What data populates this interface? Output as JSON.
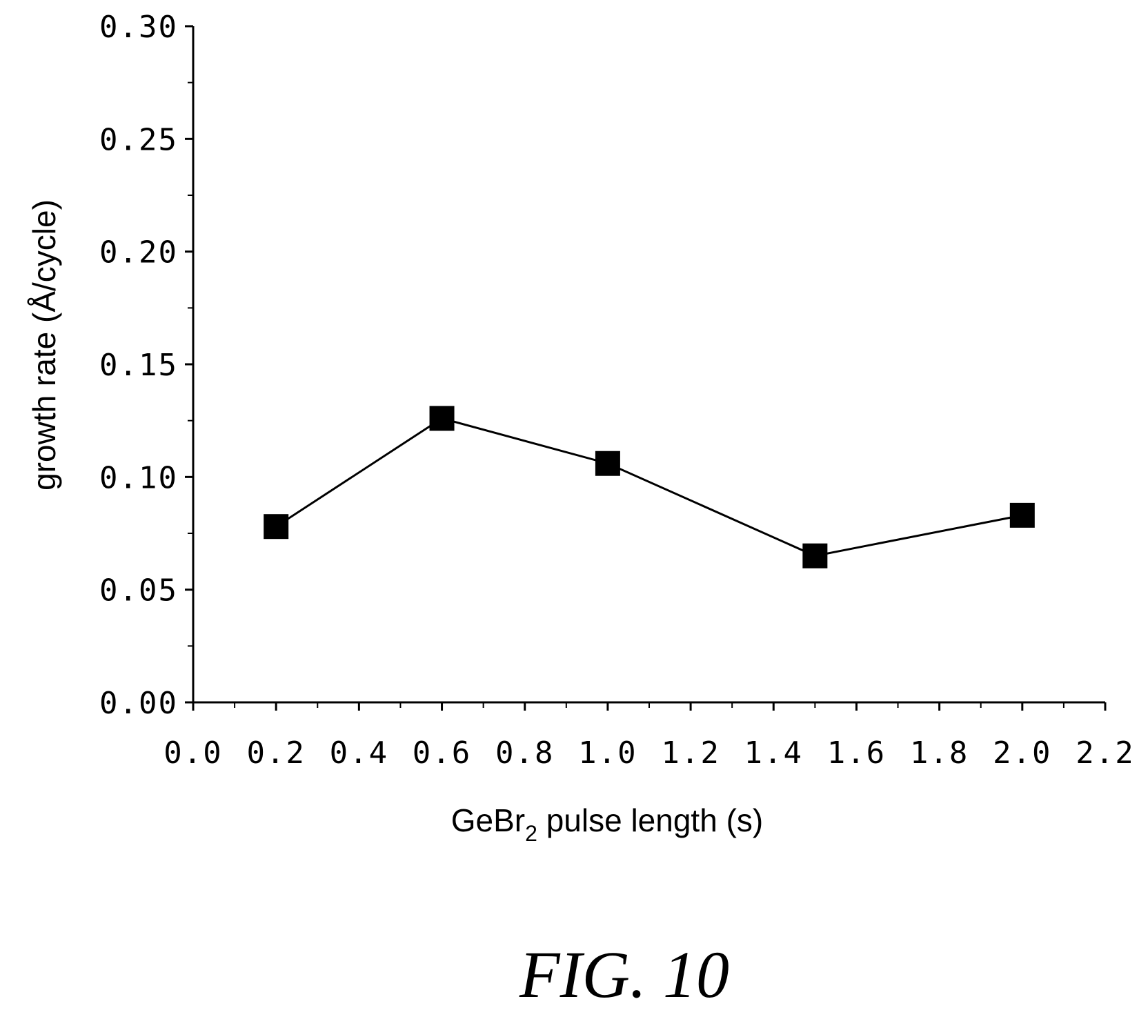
{
  "chart_data": {
    "type": "line",
    "xlabel": "GeBr",
    "xlabel_subscript": "2",
    "xlabel_suffix": " pulse length (s)",
    "ylabel": "growth rate (Å/cycle)",
    "xlim": [
      0.0,
      2.2
    ],
    "ylim": [
      0.0,
      0.3
    ],
    "x_ticks": [
      "0.0",
      "0.2",
      "0.4",
      "0.6",
      "0.8",
      "1.0",
      "1.2",
      "1.4",
      "1.6",
      "1.8",
      "2.0",
      "2.2"
    ],
    "y_ticks": [
      "0.00",
      "0.05",
      "0.10",
      "0.15",
      "0.20",
      "0.25",
      "0.30"
    ],
    "series": [
      {
        "marker": "square",
        "x": [
          0.2,
          0.6,
          1.0,
          1.5,
          2.0
        ],
        "y": [
          0.078,
          0.126,
          0.106,
          0.065,
          0.083
        ]
      }
    ],
    "grid": false,
    "colors": {
      "line": "#000000",
      "marker": "#000000"
    }
  },
  "figure_label": "FIG. 10"
}
